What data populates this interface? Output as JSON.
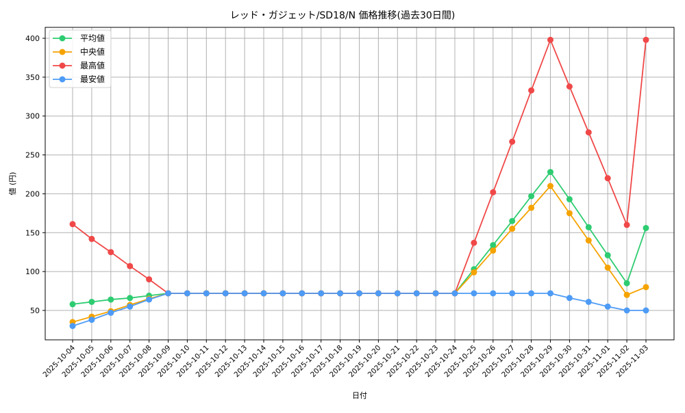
{
  "chart_data": {
    "type": "line",
    "title": "レッド・ガジェット/SD18/N 価格推移(過去30日間)",
    "xlabel": "日付",
    "ylabel": "値 (円)",
    "ylim": [
      12,
      416
    ],
    "yticks": [
      50,
      100,
      150,
      200,
      250,
      300,
      350,
      400
    ],
    "grid": true,
    "legend_position": "upper left",
    "categories": [
      "2025-10-04",
      "2025-10-05",
      "2025-10-06",
      "2025-10-07",
      "2025-10-08",
      "2025-10-09",
      "2025-10-10",
      "2025-10-11",
      "2025-10-12",
      "2025-10-13",
      "2025-10-14",
      "2025-10-15",
      "2025-10-16",
      "2025-10-17",
      "2025-10-18",
      "2025-10-19",
      "2025-10-20",
      "2025-10-21",
      "2025-10-22",
      "2025-10-23",
      "2025-10-24",
      "2025-10-25",
      "2025-10-26",
      "2025-10-27",
      "2025-10-28",
      "2025-10-29",
      "2025-10-30",
      "2025-10-31",
      "2025-11-01",
      "2025-11-02",
      "2025-11-03"
    ],
    "series": [
      {
        "name": "平均値",
        "color": "#2ecc71",
        "values": [
          58,
          61,
          64,
          66,
          69,
          72,
          72,
          72,
          72,
          72,
          72,
          72,
          72,
          72,
          72,
          72,
          72,
          72,
          72,
          72,
          72,
          103,
          134,
          165,
          197,
          228,
          193,
          157,
          121,
          85,
          156
        ]
      },
      {
        "name": "中央値",
        "color": "#f5a300",
        "values": [
          35,
          42,
          49,
          57,
          65,
          72,
          72,
          72,
          72,
          72,
          72,
          72,
          72,
          72,
          72,
          72,
          72,
          72,
          72,
          72,
          72,
          99,
          127,
          155,
          182,
          210,
          175,
          140,
          105,
          70,
          80
        ]
      },
      {
        "name": "最高値",
        "color": "#f04848",
        "values": [
          161,
          142,
          125,
          107,
          90,
          72,
          72,
          72,
          72,
          72,
          72,
          72,
          72,
          72,
          72,
          72,
          72,
          72,
          72,
          72,
          72,
          137,
          202,
          267,
          333,
          398,
          338,
          279,
          220,
          160,
          398
        ]
      },
      {
        "name": "最安値",
        "color": "#4d9bf5",
        "values": [
          30,
          38,
          47,
          55,
          64,
          72,
          72,
          72,
          72,
          72,
          72,
          72,
          72,
          72,
          72,
          72,
          72,
          72,
          72,
          72,
          72,
          72,
          72,
          72,
          72,
          72,
          66,
          61,
          55,
          50,
          50
        ]
      }
    ]
  }
}
